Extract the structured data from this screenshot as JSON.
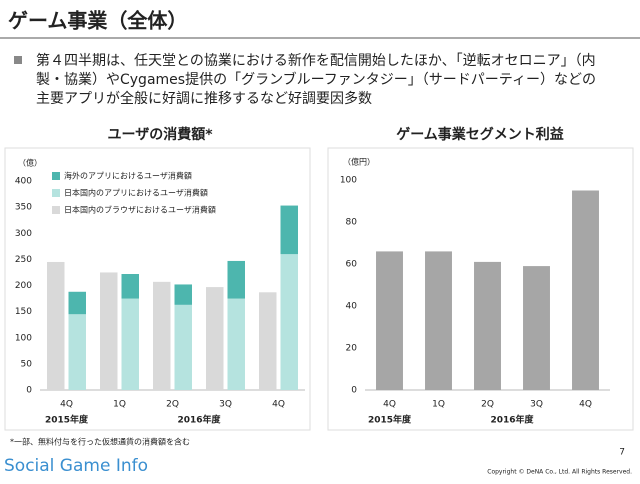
{
  "header": {
    "title": "ゲーム事業（全体）"
  },
  "bullet": [
    "第４四半期は、任天堂との協業における新作を配信開始したほか、「逆転オセロニア」（内",
    "製・協業）やCygames提供の「グランブルーファンタジー」（サードパーティー）などの",
    "主要アプリが全般に好調に推移するなど好調要因多数"
  ],
  "chart_data": [
    {
      "type": "grouped_stacked_bar",
      "title": "ユーザの消費額*",
      "unit": "（億）",
      "categories": [
        "4Q",
        "1Q",
        "2Q",
        "3Q",
        "4Q"
      ],
      "year_labels": [
        "2015年度",
        "2016年度"
      ],
      "series": [
        {
          "name": "海外のアプリにおけるユーザ消費額",
          "color": "#4db6ae",
          "stack": 1,
          "values": [
            43,
            47,
            39,
            72,
            93
          ]
        },
        {
          "name": "日本国内のアプリにおけるユーザ消費額",
          "color": "#b5e3df",
          "stack": 1,
          "values": [
            145,
            175,
            163,
            175,
            260
          ]
        },
        {
          "name": "日本国内のブラウザにおけるユーザ消費額",
          "color": "#d9d9d9",
          "stack": 0,
          "values": [
            245,
            225,
            207,
            197,
            187
          ]
        }
      ],
      "ylim": [
        0,
        400
      ],
      "yticks": [
        0,
        50,
        100,
        150,
        200,
        250,
        300,
        350,
        400
      ],
      "grid": false
    },
    {
      "type": "bar",
      "title": "ゲーム事業セグメント利益",
      "unit": "（億円）",
      "categories": [
        "4Q",
        "1Q",
        "2Q",
        "3Q",
        "4Q"
      ],
      "year_labels": [
        "2015年度",
        "2016年度"
      ],
      "series": [
        {
          "name": "セグメント利益",
          "color": "#a6a6a6",
          "values": [
            66,
            66,
            61,
            59,
            95
          ]
        }
      ],
      "ylim": [
        0,
        100
      ],
      "yticks": [
        0,
        20,
        40,
        60,
        80,
        100
      ],
      "grid": false
    }
  ],
  "footnote": "*一部、無料付与を行った仮想通貨の消費額を含む",
  "page_number": "7",
  "copyright": "Copyright © DeNA Co., Ltd. All Rights Reserved.",
  "watermark": "Social Game Info"
}
